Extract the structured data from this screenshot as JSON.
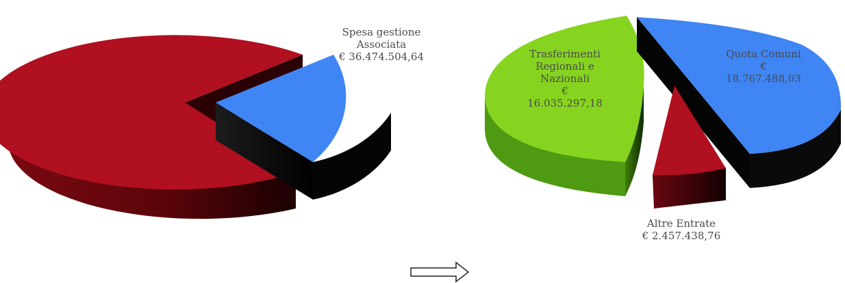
{
  "chart_data": [
    {
      "type": "pie",
      "title": "",
      "slices": [
        {
          "label": "",
          "value": 73.3,
          "color": "#b0101f"
        },
        {
          "label": "Spesa gestione\nAssociata\n€ 36.474.504,64",
          "value": 26.7,
          "color": "#3f85f4",
          "exploded": true
        }
      ]
    },
    {
      "type": "pie",
      "title": "",
      "slices": [
        {
          "label": "Quota Comuni\n€\n18.767.488,03",
          "value": 18767488.03,
          "color": "#3f85f4"
        },
        {
          "label": "Altre Entrate\n€ 2.457.438,76",
          "value": 2457438.76,
          "color": "#b0101f"
        },
        {
          "label": "Trasferimenti\nRegionali e\nNazionali\n€\n16.035.297,18",
          "value": 16035297.18,
          "color": "#7fd11f"
        }
      ]
    }
  ],
  "arrow": {
    "direction": "right"
  },
  "labels": {
    "spesa": "Spesa gestione\nAssociata\n€ 36.474.504,64",
    "trasferimenti": "Trasferimenti\nRegionali e\nNazionali\n€\n16.035.297,18",
    "quota": "Quota Comuni\n€\n18.767.488,03",
    "altre": "Altre Entrate\n€ 2.457.438,76"
  }
}
